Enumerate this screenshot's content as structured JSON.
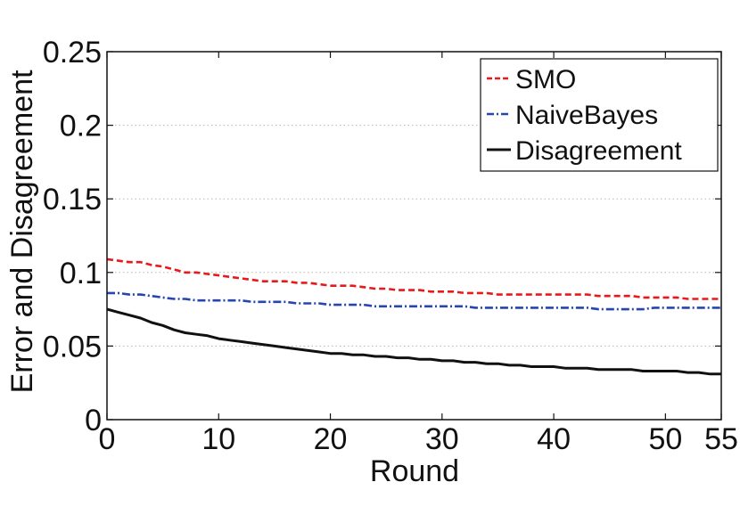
{
  "chart_data": {
    "type": "line",
    "xlabel": "Round",
    "ylabel": "Error and Disagreement",
    "xlim": [
      0,
      55
    ],
    "ylim": [
      0,
      0.25
    ],
    "x_ticks": [
      0,
      10,
      20,
      30,
      40,
      50,
      55
    ],
    "x_tick_labels": [
      "0",
      "10",
      "20",
      "30",
      "40",
      "50",
      "55"
    ],
    "y_ticks": [
      0,
      0.05,
      0.1,
      0.15,
      0.2,
      0.25
    ],
    "y_tick_labels": [
      "0",
      "0.05",
      "0.1",
      "0.15",
      "0.2",
      "0.25"
    ],
    "grid": "horizontal dotted",
    "legend_position": "top-right",
    "x": [
      0,
      1,
      2,
      3,
      4,
      5,
      6,
      7,
      8,
      9,
      10,
      11,
      12,
      13,
      14,
      15,
      16,
      17,
      18,
      19,
      20,
      21,
      22,
      23,
      24,
      25,
      26,
      27,
      28,
      29,
      30,
      31,
      32,
      33,
      34,
      35,
      36,
      37,
      38,
      39,
      40,
      41,
      42,
      43,
      44,
      45,
      46,
      47,
      48,
      49,
      50,
      51,
      52,
      53,
      54,
      55
    ],
    "series": [
      {
        "name": "SMO",
        "color": "#e8191b",
        "style": "dashed",
        "values": [
          0.109,
          0.108,
          0.107,
          0.107,
          0.105,
          0.104,
          0.102,
          0.1,
          0.1,
          0.099,
          0.098,
          0.097,
          0.096,
          0.095,
          0.094,
          0.094,
          0.094,
          0.093,
          0.093,
          0.092,
          0.091,
          0.091,
          0.091,
          0.09,
          0.089,
          0.089,
          0.088,
          0.088,
          0.088,
          0.087,
          0.087,
          0.087,
          0.086,
          0.086,
          0.086,
          0.085,
          0.085,
          0.085,
          0.085,
          0.085,
          0.085,
          0.085,
          0.085,
          0.085,
          0.084,
          0.084,
          0.084,
          0.084,
          0.083,
          0.083,
          0.083,
          0.083,
          0.082,
          0.082,
          0.082,
          0.082
        ]
      },
      {
        "name": "NaiveBayes",
        "color": "#2546b0",
        "style": "dashdot",
        "values": [
          0.086,
          0.086,
          0.085,
          0.085,
          0.084,
          0.083,
          0.082,
          0.082,
          0.081,
          0.081,
          0.081,
          0.081,
          0.081,
          0.08,
          0.08,
          0.08,
          0.08,
          0.079,
          0.079,
          0.079,
          0.078,
          0.078,
          0.078,
          0.078,
          0.077,
          0.077,
          0.077,
          0.077,
          0.077,
          0.077,
          0.077,
          0.077,
          0.077,
          0.076,
          0.076,
          0.076,
          0.076,
          0.076,
          0.076,
          0.076,
          0.076,
          0.076,
          0.076,
          0.076,
          0.075,
          0.075,
          0.075,
          0.075,
          0.075,
          0.076,
          0.076,
          0.076,
          0.076,
          0.076,
          0.076,
          0.076
        ]
      },
      {
        "name": "Disagreement",
        "color": "#111111",
        "style": "solid",
        "values": [
          0.075,
          0.073,
          0.071,
          0.069,
          0.066,
          0.064,
          0.061,
          0.059,
          0.058,
          0.057,
          0.055,
          0.054,
          0.053,
          0.052,
          0.051,
          0.05,
          0.049,
          0.048,
          0.047,
          0.046,
          0.045,
          0.045,
          0.044,
          0.044,
          0.043,
          0.043,
          0.042,
          0.042,
          0.041,
          0.041,
          0.04,
          0.04,
          0.039,
          0.039,
          0.038,
          0.038,
          0.037,
          0.037,
          0.036,
          0.036,
          0.036,
          0.035,
          0.035,
          0.035,
          0.034,
          0.034,
          0.034,
          0.034,
          0.033,
          0.033,
          0.033,
          0.033,
          0.032,
          0.032,
          0.031,
          0.031
        ]
      }
    ]
  }
}
